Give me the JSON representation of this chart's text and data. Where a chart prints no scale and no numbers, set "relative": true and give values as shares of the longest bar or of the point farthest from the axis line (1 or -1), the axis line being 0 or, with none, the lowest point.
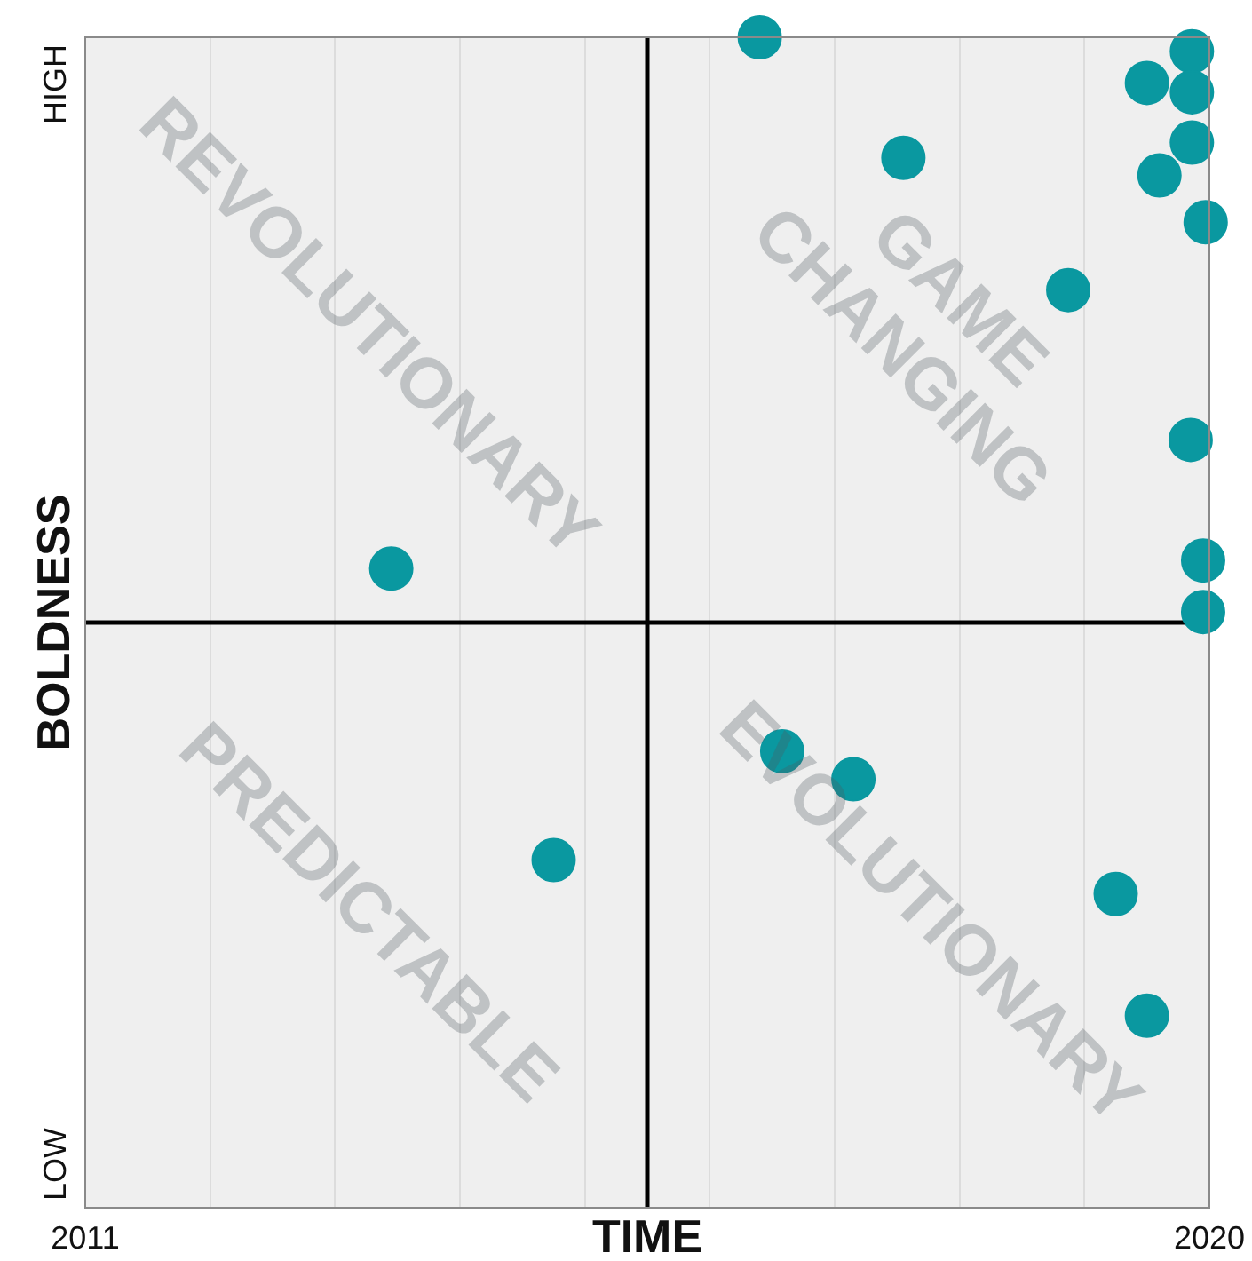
{
  "chart_data": {
    "type": "scatter",
    "xlabel": "TIME",
    "ylabel": "BOLDNESS",
    "relative": true,
    "x": [
      2016.4,
      2017.55,
      2018.87,
      2019.5,
      2019.86,
      2019.86,
      2019.86,
      2019.6,
      2019.97,
      2019.85,
      2019.95,
      2019.95,
      2013.45,
      2014.75,
      2016.58,
      2017.15,
      2019.25,
      2019.5
    ],
    "series": [
      {
        "color": "#0a98a0",
        "values": [
          1,
          0.897,
          0.784,
          0.961,
          0.988,
          0.953,
          0.91,
          0.882,
          0.842,
          0.656,
          0.553,
          0.509,
          0.546,
          0.297,
          0.39,
          0.366,
          0.268,
          0.164
        ]
      }
    ],
    "xlim": [
      2011,
      2020
    ],
    "xticks": [
      2011,
      {
        "value": 2012,
        "label": null
      },
      {
        "value": 2013,
        "label": null
      },
      {
        "value": 2014,
        "label": null
      },
      {
        "value": 2015,
        "label": null
      },
      {
        "value": 2016,
        "label": null
      },
      {
        "value": 2017,
        "label": null
      },
      {
        "value": 2018,
        "label": null
      },
      {
        "value": 2019,
        "label": null
      },
      2020
    ],
    "ref_lines": [
      {
        "axis": "x",
        "value": 2015.5,
        "color": "#000000"
      },
      {
        "axis": "y",
        "value": 0.5,
        "color": "#000000"
      }
    ],
    "annotations": [
      "REVOLUTIONARY",
      "GAME CHANGING",
      "PREDICTABLE",
      "EVOLUTIONARY",
      "LOW",
      "HIGH"
    ],
    "grid": "x",
    "marker": "circle",
    "legend": false
  }
}
